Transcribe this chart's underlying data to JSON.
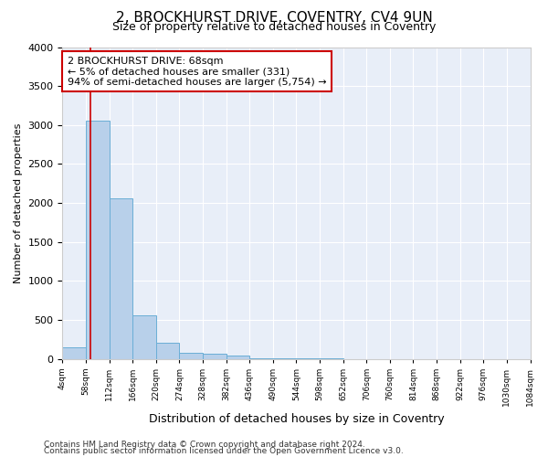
{
  "title": "2, BROCKHURST DRIVE, COVENTRY, CV4 9UN",
  "subtitle": "Size of property relative to detached houses in Coventry",
  "xlabel": "Distribution of detached houses by size in Coventry",
  "ylabel": "Number of detached properties",
  "bar_edges": [
    4,
    58,
    112,
    166,
    220,
    274,
    328,
    382,
    436,
    490,
    544,
    598,
    652,
    706,
    760,
    814,
    868,
    922,
    976,
    1030,
    1084
  ],
  "bar_heights": [
    150,
    3050,
    2060,
    560,
    200,
    80,
    60,
    40,
    10,
    5,
    3,
    2,
    0,
    0,
    0,
    0,
    0,
    0,
    0,
    0
  ],
  "bar_color": "#b8d0ea",
  "bar_edge_color": "#6aaed6",
  "property_line_x": 68,
  "property_line_color": "#cc0000",
  "annotation_line1": "2 BROCKHURST DRIVE: 68sqm",
  "annotation_line2": "← 5% of detached houses are smaller (331)",
  "annotation_line3": "94% of semi-detached houses are larger (5,754) →",
  "annotation_box_color": "#cc0000",
  "ylim": [
    0,
    4000
  ],
  "yticks": [
    0,
    500,
    1000,
    1500,
    2000,
    2500,
    3000,
    3500,
    4000
  ],
  "background_color": "#e8eef8",
  "grid_color": "#ffffff",
  "title_fontsize": 11,
  "subtitle_fontsize": 9,
  "footnote1": "Contains HM Land Registry data © Crown copyright and database right 2024.",
  "footnote2": "Contains public sector information licensed under the Open Government Licence v3.0."
}
